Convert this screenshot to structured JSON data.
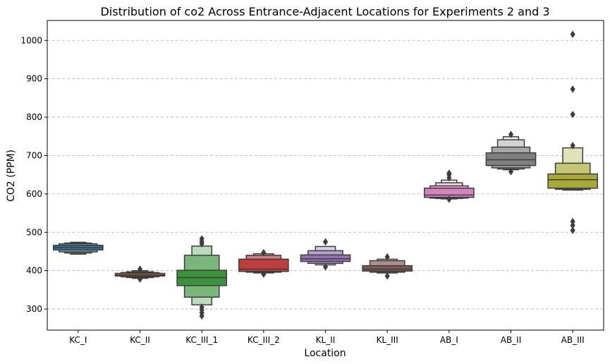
{
  "chart_data": {
    "type": "boxen",
    "title": "Distribution of co2 Across Entrance-Adjacent Locations for Experiments 2 and 3",
    "xlabel": "Location",
    "ylabel": "CO2 (PPM)",
    "ylim": [
      245,
      1052
    ],
    "yticks": [
      300,
      400,
      500,
      600,
      700,
      800,
      900,
      1000
    ],
    "grid": "y-dashed",
    "categories": [
      "KC_I",
      "KC_II",
      "KC_III_1",
      "KC_III_2",
      "KL_II",
      "KL_III",
      "AB_I",
      "AB_II",
      "AB_III"
    ],
    "series": [
      {
        "category": "KC_I",
        "color": "#3274a1",
        "median": 460,
        "boxes": [
          [
            454,
            466
          ],
          [
            449,
            470
          ],
          [
            446,
            472
          ],
          [
            443,
            474
          ]
        ],
        "outliers": []
      },
      {
        "category": "KC_II",
        "color": "#e1812c",
        "median": 389,
        "boxes": [
          [
            386,
            393
          ],
          [
            384,
            395
          ],
          [
            382,
            397
          ],
          [
            380,
            400
          ]
        ],
        "outliers": [
          404,
          378
        ]
      },
      {
        "category": "KC_III_1",
        "color": "#3a923a",
        "median": 382,
        "boxes": [
          [
            361,
            401
          ],
          [
            331,
            440
          ],
          [
            311,
            464
          ]
        ],
        "outliers": [
          470,
          476,
          483,
          305,
          298,
          290,
          282
        ]
      },
      {
        "category": "KC_III_2",
        "color": "#c03d3e",
        "median": 404,
        "boxes": [
          [
            398,
            430
          ],
          [
            396,
            440
          ],
          [
            394,
            444
          ]
        ],
        "outliers": [
          447,
          391
        ]
      },
      {
        "category": "KL_II",
        "color": "#9372b2",
        "median": 431,
        "boxes": [
          [
            424,
            441
          ],
          [
            419,
            452
          ],
          [
            415,
            463
          ]
        ],
        "outliers": [
          475,
          410
        ]
      },
      {
        "category": "KL_III",
        "color": "#845b53",
        "median": 404,
        "boxes": [
          [
            399,
            413
          ],
          [
            396,
            426
          ],
          [
            394,
            430
          ]
        ],
        "outliers": [
          436,
          386
        ]
      },
      {
        "category": "AB_I",
        "color": "#d684bd",
        "median": 597,
        "boxes": [
          [
            591,
            615
          ],
          [
            589,
            621
          ],
          [
            588,
            629
          ],
          [
            587,
            636
          ]
        ],
        "outliers": [
          642,
          650,
          654,
          586
        ]
      },
      {
        "category": "AB_II",
        "color": "#7f7f7f",
        "median": 689,
        "boxes": [
          [
            674,
            707
          ],
          [
            668,
            722
          ],
          [
            665,
            741
          ],
          [
            663,
            749
          ]
        ],
        "outliers": [
          755,
          658
        ]
      },
      {
        "category": "AB_III",
        "color": "#a9aa35",
        "median": 637,
        "boxes": [
          [
            615,
            652
          ],
          [
            612,
            680
          ],
          [
            610,
            720
          ]
        ],
        "outliers": [
          726,
          807,
          873,
          1016,
          528,
          518,
          505
        ]
      }
    ]
  }
}
